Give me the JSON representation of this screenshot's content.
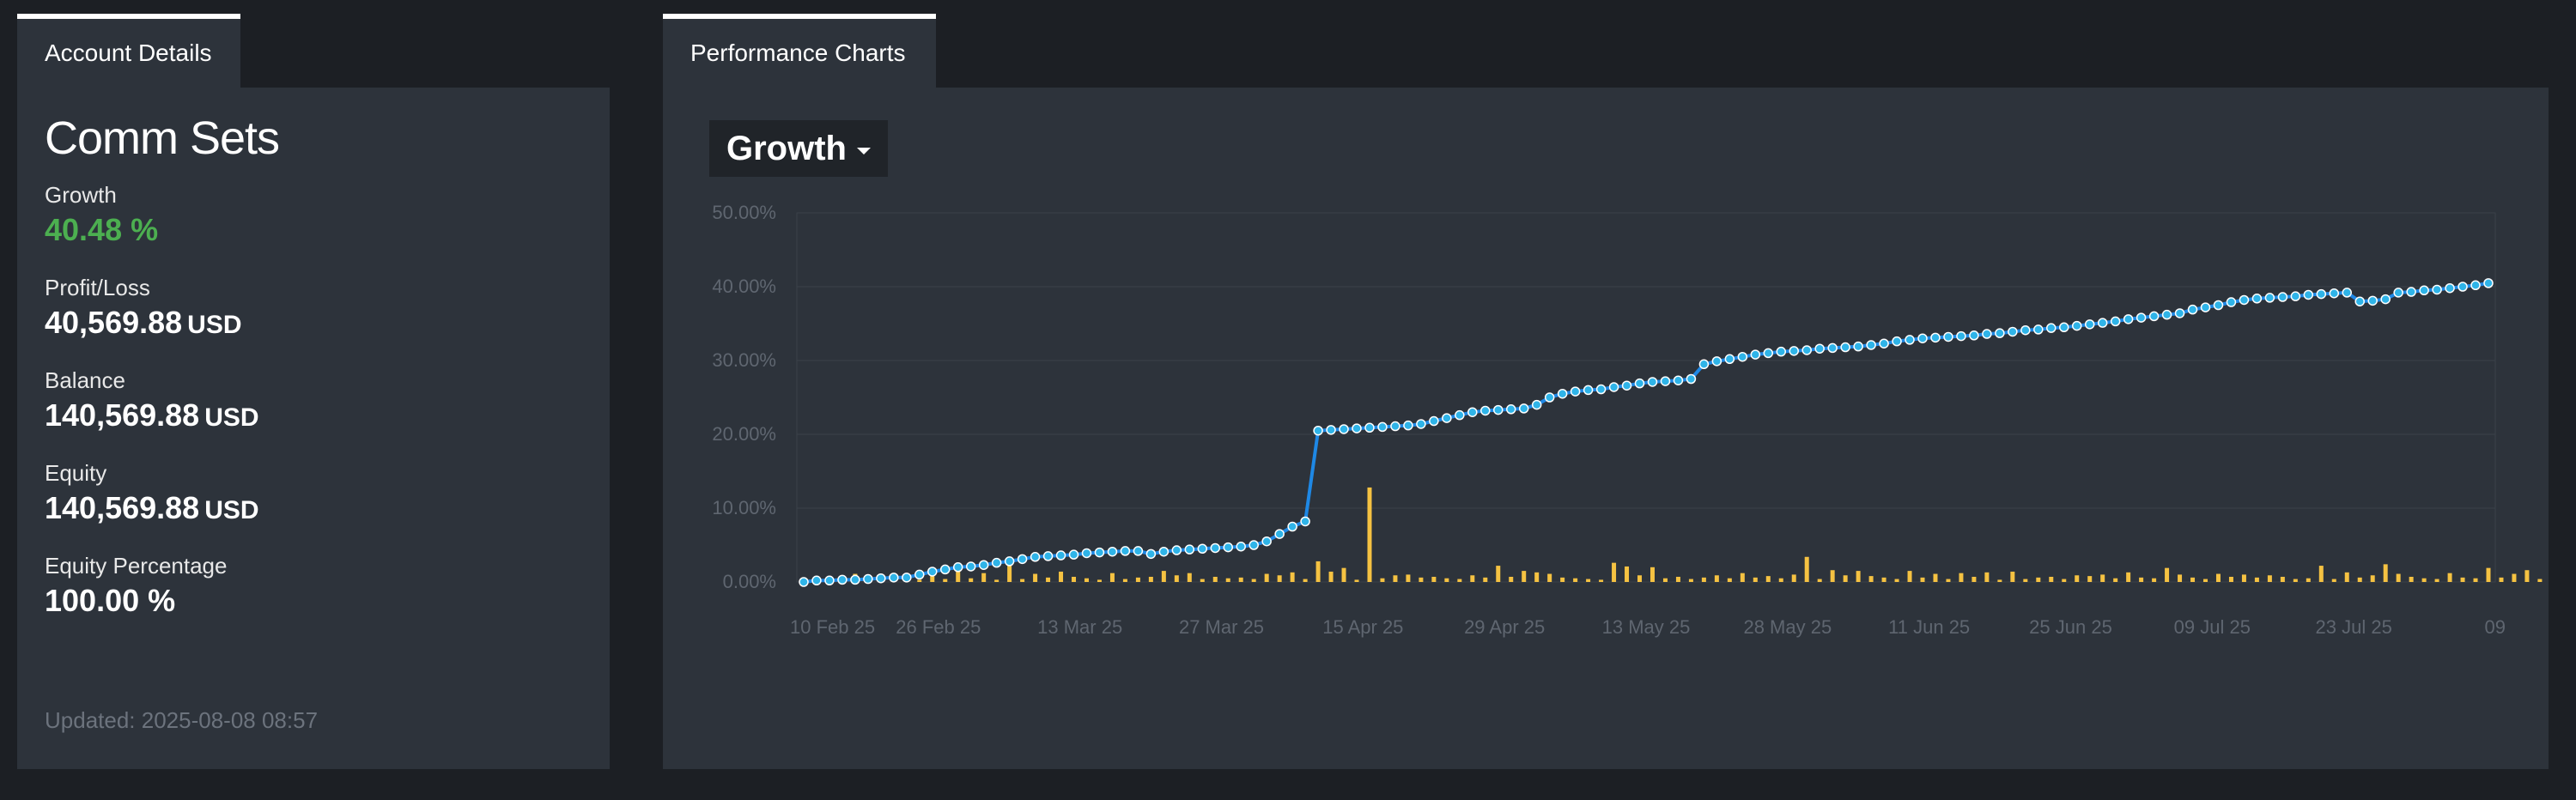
{
  "tabs": {
    "account": "Account Details",
    "performance": "Performance Charts"
  },
  "account": {
    "name": "Comm Sets",
    "growth_label": "Growth",
    "growth_value": "40.48",
    "growth_unit": "%",
    "pl_label": "Profit/Loss",
    "pl_value": "40,569.88",
    "pl_unit": "USD",
    "balance_label": "Balance",
    "balance_value": "140,569.88",
    "balance_unit": "USD",
    "equity_label": "Equity",
    "equity_value": "140,569.88",
    "equity_unit": "USD",
    "equity_pct_label": "Equity Percentage",
    "equity_pct_value": "100.00",
    "equity_pct_unit": "%",
    "updated": "Updated: 2025-08-08 08:57"
  },
  "chart_selector": "Growth",
  "colors": {
    "growth_line": "#1e88e5",
    "marker_fill": "#2fb4e8",
    "bar": "#f5c242",
    "growth_text": "#4caf50"
  },
  "chart_data": {
    "type": "line",
    "ylim": [
      0,
      50
    ],
    "y_ticks": [
      "0.00%",
      "10.00%",
      "20.00%",
      "30.00%",
      "40.00%",
      "50.00%"
    ],
    "x_ticks": [
      "10 Feb 25",
      "26 Feb 25",
      "13 Mar 25",
      "27 Mar 25",
      "15 Apr 25",
      "29 Apr 25",
      "13 May 25",
      "28 May 25",
      "11 Jun 25",
      "25 Jun 25",
      "09 Jul 25",
      "23 Jul 25",
      "09"
    ],
    "grid": true,
    "series": [
      {
        "values": [
          0.0,
          0.2,
          0.2,
          0.3,
          0.3,
          0.4,
          0.5,
          0.6,
          0.6,
          1.0,
          1.4,
          1.7,
          2.0,
          2.1,
          2.3,
          2.6,
          2.8,
          3.1,
          3.4,
          3.5,
          3.6,
          3.7,
          3.9,
          4.0,
          4.1,
          4.2,
          4.2,
          3.8,
          4.1,
          4.3,
          4.4,
          4.5,
          4.6,
          4.7,
          4.8,
          5.0,
          5.5,
          6.5,
          7.5,
          8.2,
          20.5,
          20.6,
          20.7,
          20.8,
          20.9,
          21.0,
          21.1,
          21.2,
          21.4,
          21.8,
          22.2,
          22.6,
          23.0,
          23.2,
          23.3,
          23.4,
          23.5,
          24.0,
          25.0,
          25.5,
          25.8,
          26.0,
          26.1,
          26.4,
          26.6,
          26.9,
          27.1,
          27.2,
          27.3,
          27.5,
          29.5,
          29.9,
          30.2,
          30.5,
          30.8,
          31.0,
          31.2,
          31.3,
          31.4,
          31.6,
          31.7,
          31.8,
          31.9,
          32.1,
          32.3,
          32.6,
          32.8,
          33.0,
          33.1,
          33.2,
          33.3,
          33.4,
          33.6,
          33.7,
          33.9,
          34.1,
          34.2,
          34.4,
          34.5,
          34.7,
          34.9,
          35.1,
          35.3,
          35.6,
          35.8,
          36.0,
          36.2,
          36.4,
          36.9,
          37.2,
          37.5,
          37.9,
          38.2,
          38.4,
          38.5,
          38.6,
          38.7,
          38.9,
          39.0,
          39.1,
          39.2,
          38.0,
          38.1,
          38.3,
          39.2,
          39.3,
          39.5,
          39.6,
          39.8,
          40.0,
          40.2,
          40.48
        ]
      },
      {
        "values": [
          0.6,
          0.4,
          0.8,
          0.5,
          1.1,
          0.5,
          0.7,
          0.6,
          0.9,
          0.3,
          1.3,
          0.4,
          1.6,
          0.5,
          1.2,
          0.3,
          3.0,
          0.4,
          1.1,
          0.6,
          1.4,
          0.7,
          0.5,
          0.3,
          1.2,
          0.4,
          0.6,
          0.7,
          1.5,
          0.9,
          1.2,
          0.4,
          0.7,
          0.5,
          0.6,
          0.4,
          1.1,
          0.9,
          1.3,
          0.4,
          2.8,
          1.4,
          1.9,
          0.3,
          12.8,
          0.5,
          0.9,
          1.0,
          0.6,
          0.7,
          0.5,
          0.4,
          0.9,
          0.6,
          2.2,
          0.7,
          1.5,
          1.3,
          1.1,
          0.6,
          0.5,
          0.4,
          0.3,
          2.6,
          2.1,
          0.9,
          2.0,
          0.5,
          0.7,
          0.4,
          0.6,
          0.9,
          0.5,
          1.2,
          0.6,
          0.8,
          0.5,
          1.0,
          3.4,
          0.4,
          1.6,
          0.9,
          1.5,
          0.8,
          0.6,
          0.4,
          1.5,
          0.6,
          1.1,
          0.4,
          1.2,
          0.7,
          1.3,
          0.3,
          1.4,
          0.4,
          0.6,
          0.7,
          0.4,
          0.9,
          0.8,
          1.0,
          0.5,
          1.3,
          0.6,
          0.5,
          1.9,
          1.0,
          0.6,
          0.4,
          1.1,
          0.7,
          1.0,
          0.6,
          0.9,
          0.7,
          0.4,
          0.5,
          2.2,
          0.4,
          1.3,
          0.6,
          0.9,
          2.4,
          1.1,
          0.7,
          0.5,
          0.4,
          1.2,
          0.6,
          0.5,
          1.9,
          0.6,
          1.1,
          1.6,
          0.4,
          0.6,
          1.3,
          0.4,
          1.4,
          0.6,
          0.2
        ]
      }
    ]
  }
}
